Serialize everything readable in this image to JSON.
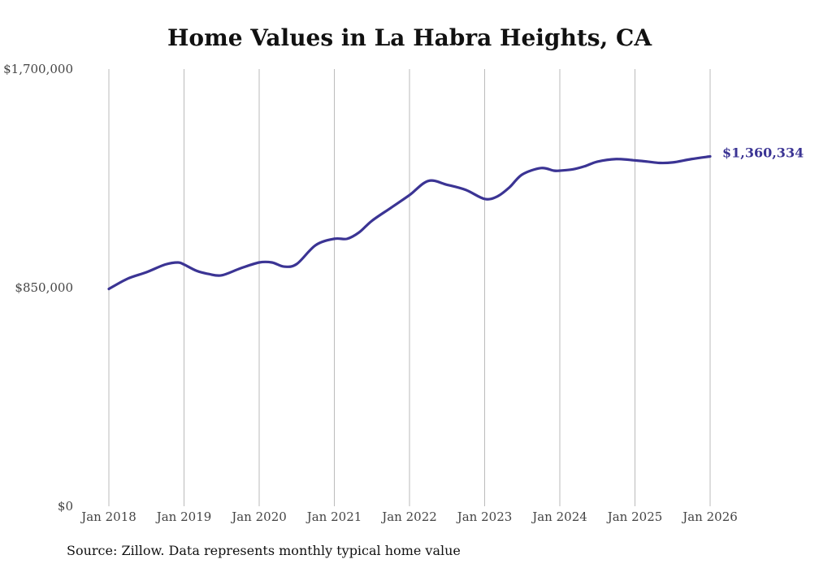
{
  "source_note": "Source: Zillow. Data represents monthly typical home value",
  "colors": {
    "line": "#3b3494",
    "grid": "#bbbbbb",
    "text": "#444444"
  },
  "chart_data": {
    "type": "line",
    "title": "Home Values in La Habra Heights, CA",
    "xlabel": "",
    "ylabel": "",
    "ylim": [
      0,
      1700000
    ],
    "y_ticks": [
      0,
      850000,
      1700000
    ],
    "y_tick_labels": [
      "$0",
      "$850,000",
      "$1,700,000"
    ],
    "x_ticks": [
      2018,
      2019,
      2020,
      2021,
      2022,
      2023,
      2024,
      2025,
      2026
    ],
    "x_tick_labels": [
      "Jan 2018",
      "Jan 2019",
      "Jan 2020",
      "Jan 2021",
      "Jan 2022",
      "Jan 2023",
      "Jan 2024",
      "Jan 2025",
      "Jan 2026"
    ],
    "grid": "vertical",
    "last_value_label": "$1,360,334",
    "series": [
      {
        "name": "Typical home value",
        "x": [
          2018.0,
          2018.25,
          2018.5,
          2018.75,
          2018.92,
          2019.0,
          2019.17,
          2019.33,
          2019.5,
          2019.75,
          2020.0,
          2020.17,
          2020.33,
          2020.5,
          2020.75,
          2021.0,
          2021.17,
          2021.33,
          2021.5,
          2021.75,
          2022.0,
          2022.25,
          2022.5,
          2022.75,
          2023.0,
          2023.17,
          2023.33,
          2023.5,
          2023.75,
          2023.92,
          2024.0,
          2024.17,
          2024.33,
          2024.5,
          2024.75,
          2025.0,
          2025.17,
          2025.33,
          2025.5,
          2025.75,
          2026.0
        ],
        "values": [
          845000,
          885000,
          910000,
          940000,
          948000,
          940000,
          915000,
          903000,
          898000,
          925000,
          948000,
          948000,
          932000,
          942000,
          1015000,
          1040000,
          1040000,
          1065000,
          1110000,
          1160000,
          1210000,
          1265000,
          1250000,
          1230000,
          1195000,
          1205000,
          1240000,
          1290000,
          1315000,
          1305000,
          1305000,
          1310000,
          1322000,
          1340000,
          1350000,
          1345000,
          1340000,
          1335000,
          1337000,
          1350000,
          1360334
        ]
      }
    ]
  }
}
